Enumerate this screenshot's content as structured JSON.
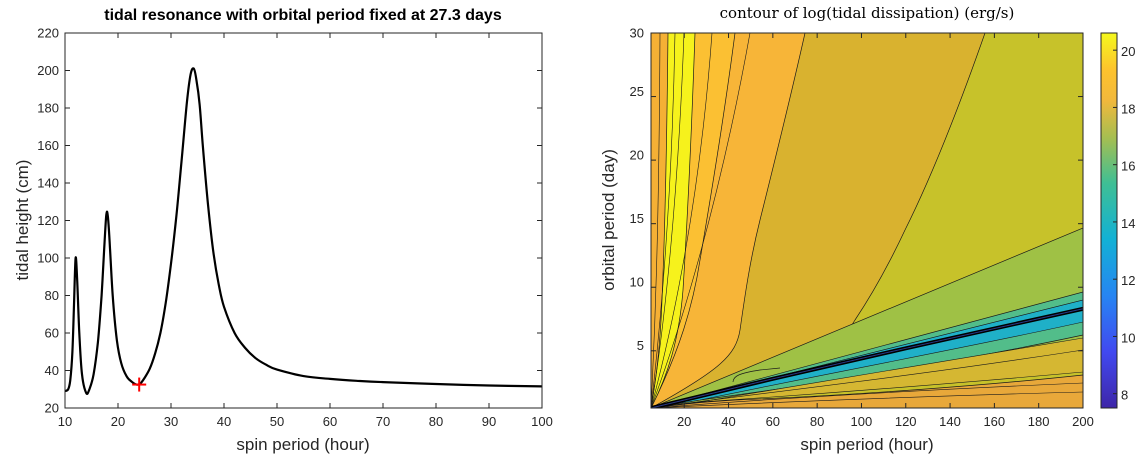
{
  "colors": {
    "curve": "#000000",
    "marker": "#ff0000",
    "axis": "#262626",
    "contour_line": "#1a1a1a"
  },
  "chart_data": [
    {
      "type": "line",
      "title": "tidal resonance with orbital period fixed at 27.3 days",
      "xlabel": "spin period (hour)",
      "ylabel": "tidal height (cm)",
      "xlim": [
        10,
        100
      ],
      "ylim": [
        20,
        220
      ],
      "xticks": [
        "10",
        "20",
        "30",
        "40",
        "50",
        "60",
        "70",
        "80",
        "90",
        "100"
      ],
      "yticks": [
        "20",
        "40",
        "60",
        "80",
        "100",
        "120",
        "140",
        "160",
        "180",
        "200",
        "220"
      ],
      "grid": false,
      "series": [
        {
          "x": [
            10,
            10.6,
            11,
            11.4,
            11.7,
            12,
            12.3,
            12.7,
            13.2,
            14,
            14.6,
            15.4,
            16.2,
            16.9,
            17.4,
            17.8,
            18.1,
            18.5,
            19,
            19.8,
            20.6,
            21.6,
            22.6,
            23.5,
            24.2,
            25,
            26,
            27,
            28,
            29,
            30,
            31,
            32,
            33,
            33.7,
            34.3,
            34.8,
            35.4,
            36,
            37,
            38,
            39,
            40,
            42,
            44,
            46,
            48,
            50,
            55,
            60,
            65,
            70,
            80,
            90,
            100
          ],
          "y": [
            29,
            30,
            35,
            50,
            75,
            100,
            88,
            60,
            38,
            28,
            30,
            38,
            55,
            80,
            105,
            123,
            122,
            105,
            80,
            56,
            44,
            37,
            34,
            32.5,
            33,
            36,
            41,
            49,
            60,
            76,
            97,
            122,
            152,
            183,
            198,
            201,
            195,
            182,
            160,
            128,
            103,
            86,
            74,
            60,
            52,
            46.5,
            43,
            40.5,
            37,
            35.5,
            34.5,
            33.8,
            32.8,
            32,
            31.5
          ]
        }
      ],
      "annotations": [
        {
          "marker": "+",
          "x": 24,
          "y": 32.5
        }
      ]
    },
    {
      "type": "heatmap",
      "title": "contour of log(tidal dissipation) (erg/s)",
      "xlabel": "spin period (hour)",
      "ylabel": "orbital period (day)",
      "xlim": [
        5,
        200
      ],
      "ylim": [
        0.5,
        30
      ],
      "xticks": [
        "20",
        "40",
        "60",
        "80",
        "100",
        "120",
        "140",
        "160",
        "180",
        "200"
      ],
      "yticks": [
        "5",
        "10",
        "15",
        "20",
        "25",
        "30"
      ],
      "colorbar": {
        "range": [
          7.5,
          20.6
        ],
        "ticks": [
          "8",
          "10",
          "12",
          "14",
          "16",
          "18",
          "20"
        ],
        "colormap": "parula"
      },
      "resonance_ridge": {
        "x": [
          5,
          60,
          120,
          200
        ],
        "y": [
          0.5,
          2.8,
          5.2,
          8.3
        ]
      },
      "contour_levels_approx": [
        {
          "value": 20.3,
          "x_at_y30": 30
        },
        {
          "value": 19.0,
          "x_at_y30": 40
        },
        {
          "value": 18.0,
          "x_at_y30": 70
        },
        {
          "value": 17.3,
          "x_at_y30": 148
        }
      ]
    }
  ]
}
